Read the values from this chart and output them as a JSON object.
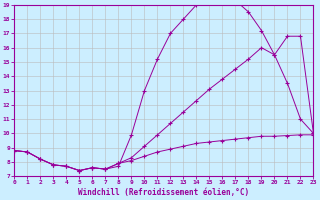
{
  "xlabel": "Windchill (Refroidissement éolien,°C)",
  "bg_color": "#cceeff",
  "line_color": "#990099",
  "grid_color": "#bbbbbb",
  "x_min": 0,
  "x_max": 23,
  "y_min": 7,
  "y_max": 19,
  "curve1_x": [
    0,
    1,
    2,
    3,
    4,
    5,
    6,
    7,
    8,
    9,
    10,
    11,
    12,
    13,
    14,
    15,
    16,
    17,
    18,
    19,
    20,
    21,
    22,
    23
  ],
  "curve1_y": [
    8.8,
    8.7,
    8.2,
    7.8,
    7.7,
    7.4,
    7.6,
    7.5,
    7.7,
    9.9,
    13.0,
    15.2,
    17.0,
    18.0,
    19.0,
    19.2,
    19.1,
    19.3,
    18.5,
    17.2,
    15.5,
    13.5,
    11.0,
    10.0
  ],
  "curve2_x": [
    0,
    1,
    2,
    3,
    4,
    5,
    6,
    7,
    8,
    9,
    10,
    11,
    12,
    13,
    14,
    15,
    16,
    17,
    18,
    19,
    20,
    21,
    22,
    23
  ],
  "curve2_y": [
    8.8,
    8.7,
    8.2,
    7.8,
    7.7,
    7.4,
    7.6,
    7.5,
    7.9,
    8.3,
    9.1,
    9.9,
    10.7,
    11.5,
    12.3,
    13.1,
    13.8,
    14.5,
    15.2,
    16.0,
    15.5,
    16.8,
    16.8,
    10.0
  ],
  "curve3_x": [
    0,
    1,
    2,
    3,
    4,
    5,
    6,
    7,
    8,
    9,
    10,
    11,
    12,
    13,
    14,
    15,
    16,
    17,
    18,
    19,
    20,
    21,
    22,
    23
  ],
  "curve3_y": [
    8.8,
    8.7,
    8.2,
    7.8,
    7.7,
    7.4,
    7.6,
    7.5,
    7.9,
    8.1,
    8.4,
    8.7,
    8.9,
    9.1,
    9.3,
    9.4,
    9.5,
    9.6,
    9.7,
    9.8,
    9.8,
    9.85,
    9.9,
    9.9
  ]
}
